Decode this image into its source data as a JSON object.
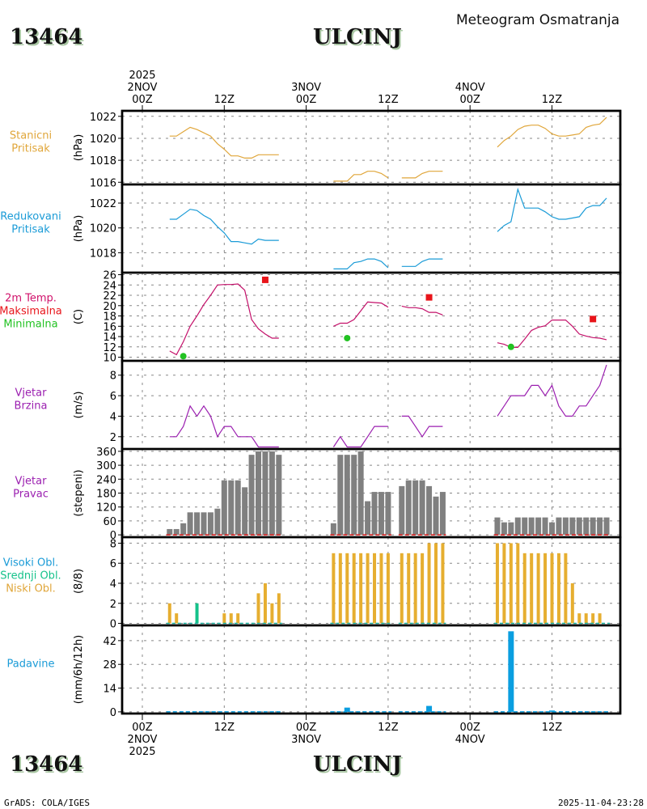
{
  "header": {
    "station_id": "13464",
    "station_name": "ULCINJ",
    "subtitle": "Meteogram Osmatranja"
  },
  "footer": {
    "credit": "GrADS: COLA/IGES",
    "timestamp": "2025-11-04-23:28"
  },
  "time_axis": {
    "top_labels": [
      {
        "hour": 0,
        "lines": [
          "2025",
          "2NOV",
          "00Z"
        ]
      },
      {
        "hour": 12,
        "lines": [
          "12Z"
        ]
      },
      {
        "hour": 24,
        "lines": [
          "3NOV",
          "00Z"
        ]
      },
      {
        "hour": 36,
        "lines": [
          "12Z"
        ]
      },
      {
        "hour": 48,
        "lines": [
          "4NOV",
          "00Z"
        ]
      },
      {
        "hour": 60,
        "lines": [
          "12Z"
        ]
      }
    ],
    "bottom_labels": [
      {
        "hour": 0,
        "lines": [
          "00Z",
          "2NOV",
          "2025"
        ]
      },
      {
        "hour": 12,
        "lines": [
          "12Z"
        ]
      },
      {
        "hour": 24,
        "lines": [
          "00Z",
          "3NOV"
        ]
      },
      {
        "hour": 36,
        "lines": [
          "12Z"
        ]
      },
      {
        "hour": 48,
        "lines": [
          "00Z",
          "4NOV"
        ]
      },
      {
        "hour": 60,
        "lines": [
          "12Z"
        ]
      }
    ],
    "range_hours": [
      -3,
      70
    ]
  },
  "chart_data": [
    {
      "id": "station-pressure",
      "type": "line",
      "labels": [
        "Stanicni",
        "Pritisak"
      ],
      "label_color": "#e0a63a",
      "ylabel": "(hPa)",
      "ylim": [
        1015.8,
        1022.5
      ],
      "yticks": [
        1016,
        1018,
        1020,
        1022
      ],
      "series": [
        {
          "name": "Stanicni Pritisak",
          "color": "#e0a63a",
          "segments": [
            {
              "x": [
                4,
                5,
                6,
                7,
                8,
                9,
                10,
                11,
                12,
                13,
                14,
                15,
                16,
                17,
                18,
                19,
                20
              ],
              "y": [
                1020.2,
                1020.2,
                1020.6,
                1021.0,
                1020.8,
                1020.5,
                1020.2,
                1019.5,
                1019.0,
                1018.4,
                1018.4,
                1018.2,
                1018.2,
                1018.5,
                1018.5,
                1018.5,
                1018.5
              ]
            },
            {
              "x": [
                28,
                29,
                30,
                31,
                32,
                33,
                34,
                35,
                36
              ],
              "y": [
                1016.1,
                1016.1,
                1016.1,
                1016.7,
                1016.7,
                1017.0,
                1017.0,
                1016.8,
                1016.4
              ]
            },
            {
              "x": [
                38,
                39,
                40,
                41,
                42,
                43,
                44
              ],
              "y": [
                1016.4,
                1016.4,
                1016.4,
                1016.8,
                1017.0,
                1017.0,
                1017.0
              ]
            },
            {
              "x": [
                52,
                53,
                54,
                55,
                56,
                57,
                58,
                59,
                60,
                61,
                62,
                63,
                64,
                65,
                66,
                67,
                68
              ],
              "y": [
                1019.2,
                1019.8,
                1020.2,
                1020.8,
                1021.1,
                1021.2,
                1021.2,
                1020.9,
                1020.4,
                1020.2,
                1020.2,
                1020.3,
                1020.4,
                1021.0,
                1021.2,
                1021.3,
                1021.9
              ]
            }
          ]
        }
      ]
    },
    {
      "id": "reduced-pressure",
      "type": "line",
      "labels": [
        "Redukovani",
        "Pritisak"
      ],
      "label_color": "#1a9bd7",
      "ylabel": "(hPa)",
      "ylim": [
        1016.4,
        1023.5
      ],
      "yticks": [
        1018,
        1020,
        1022
      ],
      "series": [
        {
          "name": "Redukovani Pritisak",
          "color": "#1a9bd7",
          "segments": [
            {
              "x": [
                4,
                5,
                6,
                7,
                8,
                9,
                10,
                11,
                12,
                13,
                14,
                15,
                16,
                17,
                18,
                19,
                20
              ],
              "y": [
                1020.7,
                1020.7,
                1021.1,
                1021.5,
                1021.4,
                1021.0,
                1020.7,
                1020.1,
                1019.6,
                1018.9,
                1018.9,
                1018.8,
                1018.7,
                1019.1,
                1019.0,
                1019.0,
                1019.0
              ]
            },
            {
              "x": [
                28,
                29,
                30,
                31,
                32,
                33,
                34,
                35,
                36
              ],
              "y": [
                1016.7,
                1016.7,
                1016.7,
                1017.2,
                1017.3,
                1017.5,
                1017.5,
                1017.3,
                1016.8
              ]
            },
            {
              "x": [
                38,
                39,
                40,
                41,
                42,
                43,
                44
              ],
              "y": [
                1016.9,
                1016.9,
                1016.9,
                1017.3,
                1017.5,
                1017.5,
                1017.5
              ]
            },
            {
              "x": [
                52,
                53,
                54,
                55,
                56,
                57,
                58,
                59,
                60,
                61,
                62,
                63,
                64,
                65,
                66,
                67,
                68
              ],
              "y": [
                1019.7,
                1020.2,
                1020.5,
                1023.1,
                1021.6,
                1021.6,
                1021.6,
                1021.3,
                1020.9,
                1020.7,
                1020.7,
                1020.8,
                1020.9,
                1021.6,
                1021.8,
                1021.8,
                1022.4
              ]
            }
          ]
        }
      ]
    },
    {
      "id": "temperature",
      "type": "line",
      "labels": [
        "2m Temp.",
        "Maksimalna",
        "Minimalna"
      ],
      "label_colors": [
        "#d0106a",
        "#e8141a",
        "#22c222"
      ],
      "ylabel": "(C)",
      "ylim": [
        9.3,
        26.4
      ],
      "yticks": [
        10,
        12,
        14,
        16,
        18,
        20,
        22,
        24,
        26
      ],
      "series": [
        {
          "name": "2m Temp.",
          "color": "#c4106a",
          "segments": [
            {
              "x": [
                4,
                5,
                6,
                7,
                8,
                9,
                10,
                11,
                12,
                13,
                14,
                15,
                16,
                17,
                18,
                19,
                20
              ],
              "y": [
                11.2,
                10.5,
                13.0,
                16.0,
                18.0,
                20.2,
                22.0,
                24.0,
                24.1,
                24.1,
                24.2,
                23.0,
                17.3,
                15.5,
                14.5,
                13.7,
                13.7
              ]
            },
            {
              "x": [
                28,
                29,
                30,
                31,
                32,
                33,
                34,
                35,
                36
              ],
              "y": [
                16.0,
                16.6,
                16.6,
                17.3,
                19.0,
                20.7,
                20.6,
                20.5,
                19.7
              ]
            },
            {
              "x": [
                38,
                39,
                40,
                41,
                42,
                43,
                44
              ],
              "y": [
                19.9,
                19.6,
                19.6,
                19.4,
                18.7,
                18.7,
                18.2
              ]
            },
            {
              "x": [
                52,
                53,
                54,
                55,
                56,
                57,
                58,
                59,
                60,
                61,
                62,
                63,
                64,
                65,
                66,
                67,
                68
              ],
              "y": [
                12.8,
                12.5,
                11.9,
                11.9,
                13.5,
                15.2,
                15.8,
                16.1,
                17.2,
                17.2,
                17.2,
                16.0,
                14.5,
                14.1,
                13.8,
                13.7,
                13.4
              ]
            }
          ]
        },
        {
          "name": "Maksimalna",
          "color": "#e8141a",
          "type": "marker-square",
          "points": [
            {
              "x": 18,
              "y": 25.0
            },
            {
              "x": 42,
              "y": 21.6
            },
            {
              "x": 66,
              "y": 17.4
            }
          ]
        },
        {
          "name": "Minimalna",
          "color": "#22c222",
          "type": "marker-dot",
          "points": [
            {
              "x": 6,
              "y": 10.2
            },
            {
              "x": 30,
              "y": 13.7
            },
            {
              "x": 54,
              "y": 12.0
            }
          ]
        }
      ]
    },
    {
      "id": "wind-speed",
      "type": "line",
      "labels": [
        "Vjetar",
        "Brzina"
      ],
      "label_color": "#9b1fb0",
      "ylabel": "(m/s)",
      "ylim": [
        0.8,
        9.4
      ],
      "yticks": [
        2,
        4,
        6,
        8
      ],
      "series": [
        {
          "name": "Vjetar Brzina",
          "color": "#9b1fb0",
          "segments": [
            {
              "x": [
                4,
                5,
                6,
                7,
                8,
                9,
                10,
                11,
                12,
                13,
                14,
                15,
                16,
                17,
                18,
                19,
                20
              ],
              "y": [
                2,
                2,
                3,
                5,
                4,
                5,
                4,
                2,
                3,
                3,
                2,
                2,
                2,
                1,
                1,
                1,
                1
              ]
            },
            {
              "x": [
                28,
                29,
                30,
                31,
                32,
                33,
                34,
                35,
                36
              ],
              "y": [
                1,
                2,
                1,
                1,
                1,
                2,
                3,
                3,
                3
              ]
            },
            {
              "x": [
                38,
                39,
                40,
                41,
                42,
                43,
                44
              ],
              "y": [
                4,
                4,
                3,
                2,
                3,
                3,
                3
              ]
            },
            {
              "x": [
                52,
                53,
                54,
                55,
                56,
                57,
                58,
                59,
                60,
                61,
                62,
                63,
                64,
                65,
                66,
                67,
                68
              ],
              "y": [
                4,
                5,
                6,
                6,
                6,
                7,
                7,
                6,
                7,
                5,
                4,
                4,
                5,
                5,
                6,
                7,
                9
              ]
            }
          ]
        }
      ]
    },
    {
      "id": "wind-direction",
      "type": "bar",
      "labels": [
        "Vjetar",
        "Pravac"
      ],
      "label_color": "#9b1fb0",
      "ylabel": "(stepeni)",
      "ylim": [
        -10,
        370
      ],
      "yticks": [
        0,
        60,
        120,
        180,
        240,
        300,
        360
      ],
      "bar_color": "#808080",
      "calm_line_color": "#e01a1a",
      "x": [
        4,
        5,
        6,
        7,
        8,
        9,
        10,
        11,
        12,
        13,
        14,
        15,
        16,
        17,
        18,
        19,
        20,
        28,
        29,
        30,
        31,
        32,
        33,
        34,
        35,
        36,
        38,
        39,
        40,
        41,
        42,
        43,
        44,
        52,
        53,
        54,
        55,
        56,
        57,
        58,
        59,
        60,
        61,
        62,
        63,
        64,
        65,
        66,
        67,
        68
      ],
      "values": [
        25,
        25,
        50,
        97,
        97,
        97,
        97,
        113,
        235,
        235,
        235,
        205,
        345,
        360,
        360,
        360,
        345,
        50,
        345,
        345,
        345,
        360,
        145,
        185,
        185,
        185,
        210,
        235,
        235,
        235,
        210,
        165,
        185,
        75,
        54,
        54,
        75,
        75,
        75,
        75,
        75,
        54,
        75,
        75,
        75,
        75,
        75,
        75,
        75,
        75
      ]
    },
    {
      "id": "cloud-cover",
      "type": "bar",
      "labels": [
        "Visoki Obl.",
        "Srednji Obl.",
        "Niski Obl."
      ],
      "label_colors": [
        "#1a9bd7",
        "#15c28a",
        "#e0a63a"
      ],
      "ylabel": "(8/8)",
      "ylim": [
        -0.2,
        8.6
      ],
      "yticks": [
        0,
        2,
        4,
        6,
        8
      ],
      "series": [
        {
          "name": "Niski Obl.",
          "color": "#e6ae30",
          "x": [
            4,
            5,
            6,
            7,
            8,
            9,
            10,
            11,
            12,
            13,
            14,
            15,
            16,
            17,
            18,
            19,
            20,
            28,
            29,
            30,
            31,
            32,
            33,
            34,
            35,
            36,
            38,
            39,
            40,
            41,
            42,
            43,
            44,
            52,
            53,
            54,
            55,
            56,
            57,
            58,
            59,
            60,
            61,
            62,
            63,
            64,
            65,
            66,
            67,
            68
          ],
          "values": [
            2,
            1,
            0,
            0,
            0,
            0,
            0,
            0,
            1,
            1,
            1,
            0,
            0,
            3,
            4,
            2,
            3,
            7,
            7,
            7,
            7,
            7,
            7,
            7,
            7,
            7,
            7,
            7,
            7,
            7,
            8,
            8,
            8,
            8,
            8,
            8,
            8,
            7,
            7,
            7,
            7,
            7,
            7,
            7,
            4,
            1,
            1,
            1,
            1,
            0
          ]
        },
        {
          "name": "Srednji Obl.",
          "color": "#15c28a",
          "x": [
            8
          ],
          "values": [
            2
          ]
        },
        {
          "name": "Visoki Obl.",
          "color": "#1a9bd7",
          "x": [],
          "values": []
        }
      ]
    },
    {
      "id": "precipitation",
      "type": "bar",
      "labels": [
        "Padavine"
      ],
      "label_color": "#1a9bd7",
      "ylabel": "(mm/6h/12h)",
      "ylim": [
        -1,
        51
      ],
      "yticks": [
        0,
        14,
        28,
        42
      ],
      "bar_color": "#0a9ee0",
      "x": [
        4,
        5,
        6,
        7,
        8,
        9,
        10,
        11,
        12,
        13,
        14,
        15,
        16,
        17,
        18,
        19,
        20,
        28,
        29,
        30,
        31,
        32,
        33,
        34,
        35,
        36,
        38,
        39,
        40,
        41,
        42,
        43,
        44,
        52,
        53,
        54,
        55,
        56,
        57,
        58,
        59,
        60,
        61,
        62,
        63,
        64,
        65,
        66,
        67,
        68
      ],
      "values": [
        0,
        0,
        0,
        0,
        0,
        0,
        0,
        0,
        0,
        0,
        0,
        0,
        0,
        0,
        0,
        0,
        0,
        0,
        0,
        2.5,
        0,
        0,
        0,
        0,
        0,
        0,
        0,
        0,
        0,
        0,
        3.5,
        0,
        0,
        0,
        0,
        47.5,
        0,
        0,
        0,
        0,
        0,
        0.8,
        0,
        0,
        0,
        0,
        0,
        0,
        0,
        0
      ]
    }
  ]
}
